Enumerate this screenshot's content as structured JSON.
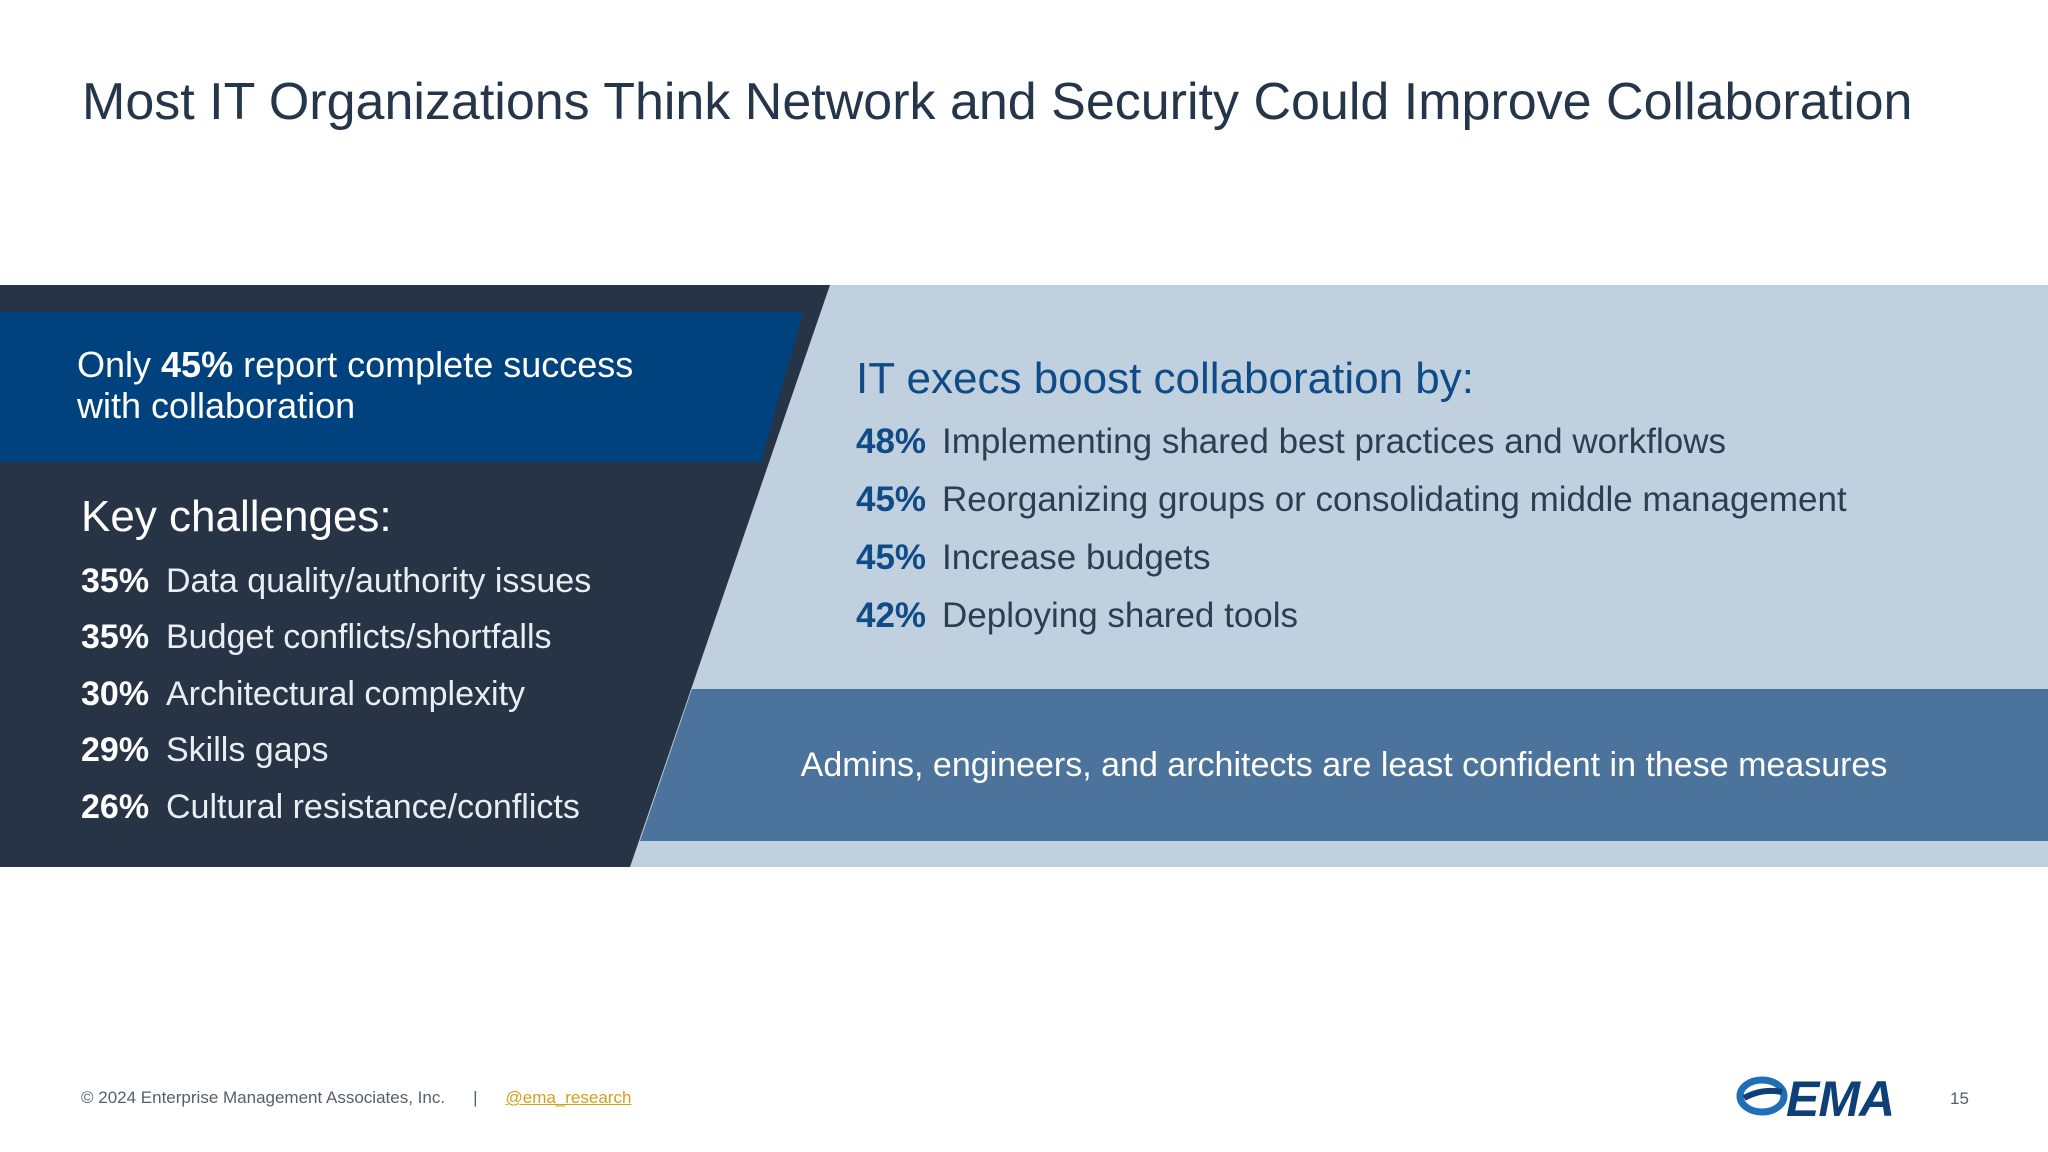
{
  "title": "Most IT Organizations Think Network and Security Could Improve Collaboration",
  "callout": {
    "prefix": "Only ",
    "highlight": "45%",
    "suffix": " report complete success with collaboration"
  },
  "challenges": {
    "heading": "Key challenges:",
    "items": [
      {
        "pct": "35%",
        "label": "Data quality/authority issues"
      },
      {
        "pct": "35%",
        "label": "Budget conflicts/shortfalls"
      },
      {
        "pct": "30%",
        "label": "Architectural complexity"
      },
      {
        "pct": "29%",
        "label": "Skills gaps"
      },
      {
        "pct": "26%",
        "label": "Cultural resistance/conflicts"
      }
    ]
  },
  "boost": {
    "heading": "IT execs boost collaboration by:",
    "items": [
      {
        "pct": "48%",
        "label": "Implementing shared best practices and workflows"
      },
      {
        "pct": "45%",
        "label": "Reorganizing groups or consolidating middle management"
      },
      {
        "pct": "45%",
        "label": "Increase budgets"
      },
      {
        "pct": "42%",
        "label": "Deploying shared tools"
      }
    ]
  },
  "note": "Admins, engineers, and architects are least confident in these measures",
  "footer": {
    "copyright": "© 2024 Enterprise Management Associates, Inc.",
    "separator": "|",
    "handle": "@ema_research"
  },
  "logo": {
    "text": "EMA"
  },
  "page_number": "15",
  "colors": {
    "dark_band": "#263445",
    "blue_band": "#00427e",
    "light_band": "#c1d0df",
    "mid_band": "#4b739c",
    "accent_text": "#0f4b86",
    "link": "#d4a017"
  }
}
